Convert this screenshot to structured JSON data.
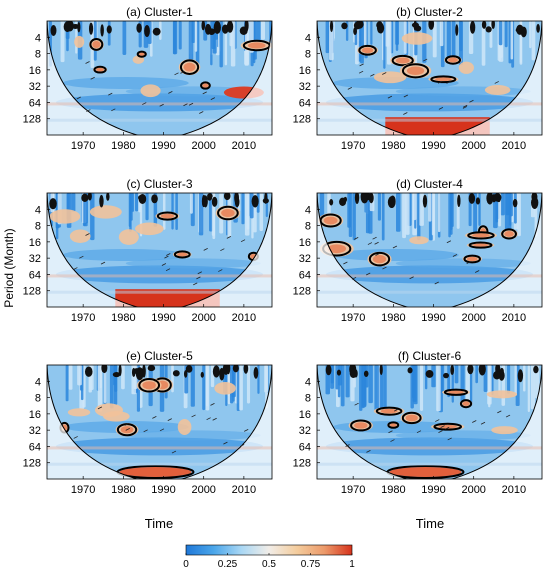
{
  "figure": {
    "ylabel": "Period (Month)",
    "xlabel": "Time",
    "colorbar": {
      "ticks": [
        "0",
        "0.25",
        "0.5",
        "0.75",
        "1"
      ],
      "min": 0,
      "max": 1,
      "colors": [
        "#1f78d8",
        "#4ba6ea",
        "#a9d7f4",
        "#f1ede8",
        "#f4cd9e",
        "#ec9a6a",
        "#d6331c"
      ]
    }
  },
  "chart_data": [
    {
      "type": "heatmap",
      "title": "(a) Cluster-1",
      "x_ticks": [
        "1970",
        "1980",
        "1990",
        "2000",
        "2010"
      ],
      "y_ticks": [
        "4",
        "8",
        "16",
        "32",
        "64",
        "128"
      ],
      "xlim": [
        1961,
        2017
      ],
      "ylim": [
        2,
        256
      ],
      "y_scale": "log2"
    },
    {
      "type": "heatmap",
      "title": "(b) Cluster-2",
      "x_ticks": [
        "1970",
        "1980",
        "1990",
        "2000",
        "2010"
      ],
      "y_ticks": [
        "4",
        "8",
        "16",
        "32",
        "64",
        "128"
      ],
      "xlim": [
        1961,
        2017
      ],
      "ylim": [
        2,
        256
      ],
      "y_scale": "log2"
    },
    {
      "type": "heatmap",
      "title": "(c) Cluster-3",
      "x_ticks": [
        "1970",
        "1980",
        "1990",
        "2000",
        "2010"
      ],
      "y_ticks": [
        "4",
        "8",
        "16",
        "32",
        "64",
        "128"
      ],
      "xlim": [
        1961,
        2017
      ],
      "ylim": [
        2,
        256
      ],
      "y_scale": "log2"
    },
    {
      "type": "heatmap",
      "title": "(d) Cluster-4",
      "x_ticks": [
        "1970",
        "1980",
        "1990",
        "2000",
        "2010"
      ],
      "y_ticks": [
        "4",
        "8",
        "16",
        "32",
        "64",
        "128"
      ],
      "xlim": [
        1961,
        2017
      ],
      "ylim": [
        2,
        256
      ],
      "y_scale": "log2"
    },
    {
      "type": "heatmap",
      "title": "(e) Cluster-5",
      "x_ticks": [
        "1970",
        "1980",
        "1990",
        "2000",
        "2010"
      ],
      "y_ticks": [
        "4",
        "8",
        "16",
        "32",
        "64",
        "128"
      ],
      "xlim": [
        1961,
        2017
      ],
      "ylim": [
        2,
        256
      ],
      "y_scale": "log2"
    },
    {
      "type": "heatmap",
      "title": "(f) Cluster-6",
      "x_ticks": [
        "1970",
        "1980",
        "1990",
        "2000",
        "2010"
      ],
      "y_ticks": [
        "4",
        "8",
        "16",
        "32",
        "64",
        "128"
      ],
      "xlim": [
        1961,
        2017
      ],
      "ylim": [
        2,
        256
      ],
      "y_scale": "log2"
    }
  ]
}
